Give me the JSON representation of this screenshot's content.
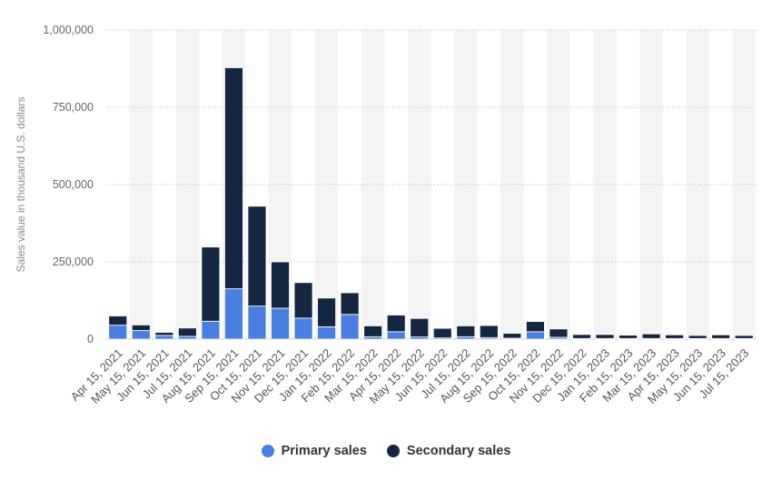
{
  "chart_data": {
    "type": "bar",
    "stacked": true,
    "title": "",
    "xlabel": "",
    "ylabel": "Sales value in thousand U.S. dollars",
    "ylim": [
      0,
      1000000
    ],
    "yticks": [
      0,
      250000,
      500000,
      750000,
      1000000
    ],
    "ytick_labels": [
      "0",
      "250,000",
      "500,000",
      "750,000",
      "1,000,000"
    ],
    "grid": true,
    "legend_position": "bottom",
    "categories": [
      "Apr 15, 2021",
      "May 15, 2021",
      "Jun 15, 2021",
      "Jul 15, 2021",
      "Aug 15, 2021",
      "Sep 15, 2021",
      "Oct 15, 2021",
      "Nov 15, 2021",
      "Dec 15, 2021",
      "Jan 15, 2022",
      "Feb 15, 2022",
      "Mar 15, 2022",
      "Apr 15, 2022",
      "May 15, 2022",
      "Jun 15, 2022",
      "Jul 15, 2022",
      "Aug 15, 2022",
      "Sep 15, 2022",
      "Oct 15, 2022",
      "Nov 15, 2022",
      "Dec 15, 2022",
      "Jan 15, 2023",
      "Feb 15, 2023",
      "Mar 15, 2023",
      "Apr 15, 2023",
      "May 15, 2023",
      "Jun 15, 2023",
      "Jul 15, 2023"
    ],
    "series": [
      {
        "name": "Primary sales",
        "color": "#4a7fe0",
        "values": [
          45000,
          28000,
          12000,
          9000,
          58000,
          163000,
          107000,
          100000,
          68000,
          40000,
          80000,
          8000,
          24000,
          7000,
          4000,
          8000,
          5000,
          3000,
          24000,
          6000,
          2000,
          2000,
          2000,
          2000,
          2000,
          2000,
          2000,
          2000
        ]
      },
      {
        "name": "Secondary sales",
        "color": "#152740",
        "values": [
          30000,
          18000,
          10000,
          27000,
          240000,
          715000,
          323000,
          150000,
          115000,
          93000,
          70000,
          35000,
          54000,
          60000,
          31000,
          35000,
          39000,
          16000,
          33000,
          27000,
          13000,
          13000,
          11000,
          15000,
          12000,
          10000,
          12000,
          10000
        ]
      }
    ]
  }
}
